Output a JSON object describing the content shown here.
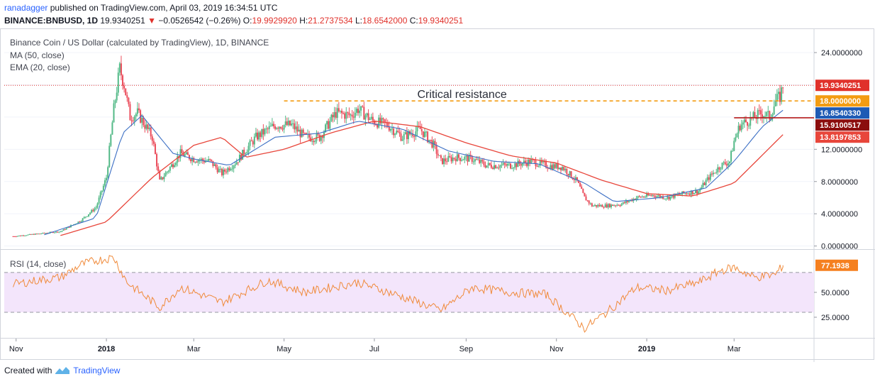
{
  "header": {
    "username": "ranadagger",
    "published_text": "published on TradingView.com, April 03, 2019 16:34:51 UTC",
    "symbol": "BINANCE:BNBUSD, 1D",
    "last_price": "19.9340251",
    "change_arrow": "▼",
    "change": "−0.0526542 (−0.26%)",
    "o_label": "O:",
    "o_value": "19.9929920",
    "h_label": "H:",
    "h_value": "21.2737534",
    "l_label": "L:",
    "l_value": "18.6542000",
    "c_label": "C:",
    "c_value": "19.9340251"
  },
  "legend": {
    "title": "Binance Coin / US Dollar (calculated by TradingView), 1D, BINANCE",
    "ma": "MA (50, close)",
    "ema": "EMA (20, close)",
    "rsi": "RSI (14, close)"
  },
  "footer": {
    "created_with": "Created with",
    "brand": "TradingView"
  },
  "colors": {
    "up_candle": "#53b987",
    "down_candle": "#eb4d5c",
    "ma_line": "#e8463b",
    "ema_line": "#3c6fc4",
    "rsi_line": "#f08a3a",
    "rsi_band": "#f3e5fb",
    "resistance_line": "#f39c12",
    "last_price_line": "#b71c1c"
  },
  "chart_data": {
    "type": "candlestick",
    "price_axis": {
      "ticks": [
        {
          "value": 24,
          "label": "24.0000000"
        },
        {
          "value": 20,
          "label": ""
        },
        {
          "value": 16,
          "label": ""
        },
        {
          "value": 12,
          "label": "12.0000000"
        },
        {
          "value": 8,
          "label": "8.0000000"
        },
        {
          "value": 4,
          "label": "4.0000000"
        },
        {
          "value": 0,
          "label": "0.0000000"
        }
      ],
      "ylim": [
        -0.3,
        27
      ]
    },
    "rsi_axis": {
      "ticks": [
        {
          "value": 50,
          "label": "50.0000"
        },
        {
          "value": 25,
          "label": "25.0000"
        }
      ],
      "overbought": 70,
      "oversold": 30,
      "ylim": [
        5,
        92
      ]
    },
    "x_axis": {
      "months": [
        {
          "label": "Nov",
          "bold": false
        },
        {
          "label": "2018",
          "bold": true
        },
        {
          "label": "Mar",
          "bold": false
        },
        {
          "label": "May",
          "bold": false
        },
        {
          "label": "Jul",
          "bold": false
        },
        {
          "label": "Sep",
          "bold": false
        },
        {
          "label": "Nov",
          "bold": false
        },
        {
          "label": "2019",
          "bold": true
        },
        {
          "label": "Mar",
          "bold": false
        }
      ]
    },
    "price_labels": [
      {
        "value": 19.9340251,
        "label": "19.9340251",
        "color": "#e0312b"
      },
      {
        "value": 18.0,
        "label": "18.0000000",
        "color": "#f39c12"
      },
      {
        "value": 16.854033,
        "label": "16.8540330",
        "color": "#1e5bb5"
      },
      {
        "value": 15.9100517,
        "label": "15.9100517",
        "color": "#8b0d0d"
      },
      {
        "value": 13.8197853,
        "label": "13.8197853",
        "color": "#e8463b"
      }
    ],
    "rsi_last": {
      "value": 77.1938,
      "label": "77.1938",
      "color": "#f5801f"
    },
    "annotations": [
      {
        "text": "Critical resistance",
        "type": "horizontal-line",
        "value": 18.0,
        "from": "May 2018",
        "to": "Apr 2019"
      },
      {
        "type": "horizontal-line",
        "value": 15.91,
        "from": "Mar 2019",
        "to": "Apr 2019"
      }
    ],
    "close_path": {
      "description": "Approximate daily closes, Nov 2017 – Apr 2019",
      "keypoints": [
        [
          "2017-10-30",
          1.2
        ],
        [
          "2017-11-15",
          1.5
        ],
        [
          "2017-12-01",
          1.8
        ],
        [
          "2017-12-15",
          3.2
        ],
        [
          "2017-12-25",
          4.8
        ],
        [
          "2018-01-01",
          8.5
        ],
        [
          "2018-01-06",
          17.0
        ],
        [
          "2018-01-10",
          22.0
        ],
        [
          "2018-01-13",
          20.0
        ],
        [
          "2018-01-17",
          16.0
        ],
        [
          "2018-01-22",
          16.5
        ],
        [
          "2018-02-01",
          13.5
        ],
        [
          "2018-02-06",
          8.0
        ],
        [
          "2018-02-14",
          10.0
        ],
        [
          "2018-02-20",
          11.5
        ],
        [
          "2018-03-01",
          10.8
        ],
        [
          "2018-03-12",
          10.5
        ],
        [
          "2018-03-20",
          9.0
        ],
        [
          "2018-03-30",
          10.5
        ],
        [
          "2018-04-12",
          13.5
        ],
        [
          "2018-04-25",
          15.0
        ],
        [
          "2018-05-06",
          15.0
        ],
        [
          "2018-05-15",
          13.5
        ],
        [
          "2018-05-25",
          13.5
        ],
        [
          "2018-06-05",
          16.5
        ],
        [
          "2018-06-15",
          16.2
        ],
        [
          "2018-06-20",
          17.0
        ],
        [
          "2018-06-30",
          15.5
        ],
        [
          "2018-07-10",
          15.0
        ],
        [
          "2018-07-20",
          13.5
        ],
        [
          "2018-08-01",
          14.5
        ],
        [
          "2018-08-10",
          12.5
        ],
        [
          "2018-08-15",
          10.5
        ],
        [
          "2018-08-25",
          11.0
        ],
        [
          "2018-09-05",
          10.8
        ],
        [
          "2018-09-15",
          10.0
        ],
        [
          "2018-10-01",
          10.0
        ],
        [
          "2018-10-15",
          10.5
        ],
        [
          "2018-10-25",
          10.0
        ],
        [
          "2018-11-05",
          9.8
        ],
        [
          "2018-11-15",
          8.0
        ],
        [
          "2018-11-20",
          6.0
        ],
        [
          "2018-11-25",
          5.0
        ],
        [
          "2018-12-05",
          5.0
        ],
        [
          "2018-12-15",
          5.2
        ],
        [
          "2018-12-25",
          6.0
        ],
        [
          "2019-01-05",
          6.3
        ],
        [
          "2019-01-15",
          6.0
        ],
        [
          "2019-01-25",
          6.5
        ],
        [
          "2019-02-05",
          6.8
        ],
        [
          "2019-02-12",
          8.5
        ],
        [
          "2019-02-20",
          10.0
        ],
        [
          "2019-02-26",
          10.5
        ],
        [
          "2019-03-01",
          13.0
        ],
        [
          "2019-03-05",
          15.0
        ],
        [
          "2019-03-10",
          15.5
        ],
        [
          "2019-03-15",
          16.0
        ],
        [
          "2019-03-20",
          16.5
        ],
        [
          "2019-03-25",
          16.0
        ],
        [
          "2019-03-29",
          18.0
        ],
        [
          "2019-04-01",
          18.5
        ],
        [
          "2019-04-03",
          19.93
        ]
      ]
    },
    "ma50_path": [
      [
        "2017-12-01",
        1.3
      ],
      [
        "2018-01-01",
        3.0
      ],
      [
        "2018-02-01",
        8.5
      ],
      [
        "2018-03-01",
        12.5
      ],
      [
        "2018-03-20",
        13.5
      ],
      [
        "2018-04-05",
        11.0
      ],
      [
        "2018-05-01",
        12.0
      ],
      [
        "2018-06-01",
        14.0
      ],
      [
        "2018-07-01",
        15.5
      ],
      [
        "2018-08-01",
        14.8
      ],
      [
        "2018-09-01",
        12.8
      ],
      [
        "2018-10-01",
        11.2
      ],
      [
        "2018-11-01",
        10.3
      ],
      [
        "2018-12-01",
        8.2
      ],
      [
        "2019-01-01",
        6.5
      ],
      [
        "2019-02-01",
        6.2
      ],
      [
        "2019-03-01",
        7.8
      ],
      [
        "2019-04-03",
        13.82
      ]
    ],
    "ema20_path": [
      [
        "2017-11-20",
        1.4
      ],
      [
        "2017-12-25",
        3.5
      ],
      [
        "2018-01-12",
        14.0
      ],
      [
        "2018-01-25",
        16.2
      ],
      [
        "2018-02-15",
        11.5
      ],
      [
        "2018-03-01",
        10.8
      ],
      [
        "2018-03-25",
        10.0
      ],
      [
        "2018-04-25",
        13.5
      ],
      [
        "2018-05-25",
        14.0
      ],
      [
        "2018-06-20",
        15.5
      ],
      [
        "2018-07-20",
        14.5
      ],
      [
        "2018-08-20",
        11.8
      ],
      [
        "2018-09-20",
        10.5
      ],
      [
        "2018-10-20",
        10.2
      ],
      [
        "2018-11-20",
        7.8
      ],
      [
        "2018-12-10",
        5.5
      ],
      [
        "2019-01-10",
        6.0
      ],
      [
        "2019-02-10",
        7.2
      ],
      [
        "2019-03-01",
        10.5
      ],
      [
        "2019-03-20",
        14.8
      ],
      [
        "2019-04-03",
        16.85
      ]
    ],
    "rsi_path": [
      [
        "2017-10-30",
        58
      ],
      [
        "2017-11-15",
        62
      ],
      [
        "2017-12-01",
        65
      ],
      [
        "2017-12-15",
        78
      ],
      [
        "2017-12-25",
        82
      ],
      [
        "2018-01-06",
        85
      ],
      [
        "2018-01-15",
        60
      ],
      [
        "2018-02-06",
        35
      ],
      [
        "2018-02-20",
        55
      ],
      [
        "2018-03-20",
        40
      ],
      [
        "2018-04-20",
        62
      ],
      [
        "2018-05-15",
        50
      ],
      [
        "2018-06-20",
        60
      ],
      [
        "2018-07-15",
        48
      ],
      [
        "2018-08-15",
        32
      ],
      [
        "2018-09-05",
        55
      ],
      [
        "2018-10-01",
        50
      ],
      [
        "2018-10-25",
        48
      ],
      [
        "2018-11-20",
        14
      ],
      [
        "2018-12-05",
        30
      ],
      [
        "2018-12-25",
        55
      ],
      [
        "2019-01-15",
        52
      ],
      [
        "2019-02-05",
        60
      ],
      [
        "2019-02-20",
        72
      ],
      [
        "2019-03-01",
        75
      ],
      [
        "2019-03-15",
        65
      ],
      [
        "2019-03-29",
        68
      ],
      [
        "2019-04-03",
        77.19
      ]
    ]
  }
}
